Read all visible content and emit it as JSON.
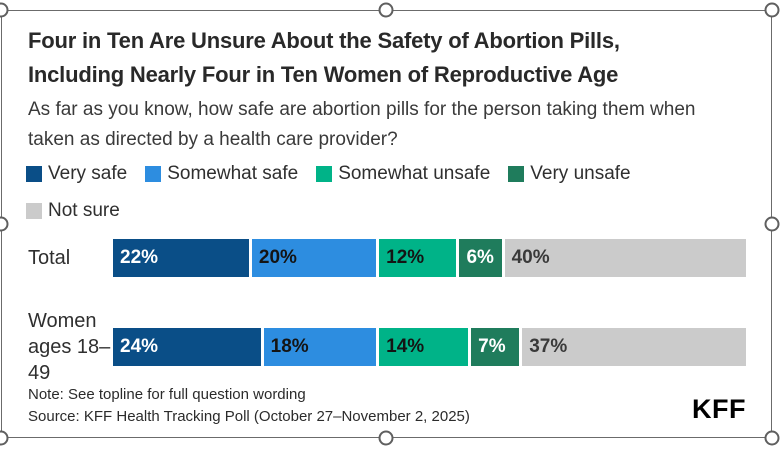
{
  "selection": {
    "border_color": "#6b6b6b",
    "handle_color": "#5f5f5f"
  },
  "card": {
    "title_line1": "Four in Ten Are Unsure About the Safety of Abortion Pills,",
    "title_line2": "Including Nearly Four in Ten Women of Reproductive Age",
    "subtitle": "As far as you know, how safe are abortion pills for the person taking them when taken as directed by a health care provider?",
    "note": "Note: See topline for full question wording",
    "source": "Source: KFF Health Tracking Poll (October 27–November 2, 2025)",
    "logo": "KFF"
  },
  "chart_data": {
    "type": "bar",
    "stacked": true,
    "orientation": "horizontal",
    "title": "Four in Ten Are Unsure About the Safety of Abortion Pills, Including Nearly Four in Ten Women of Reproductive Age",
    "subtitle": "As far as you know, how safe are abortion pills for the person taking them when taken as directed by a health care provider?",
    "categories": [
      "Total",
      "Women ages 18–49"
    ],
    "series": [
      {
        "name": "Very safe",
        "color": "#0a4e87",
        "label_color": "#ffffff",
        "values": [
          22,
          24
        ]
      },
      {
        "name": "Somewhat safe",
        "color": "#2d8de0",
        "label_color": "#141414",
        "values": [
          20,
          18
        ]
      },
      {
        "name": "Somewhat unsafe",
        "color": "#00b388",
        "label_color": "#141414",
        "values": [
          12,
          14
        ]
      },
      {
        "name": "Very unsafe",
        "color": "#1f7c5c",
        "label_color": "#ffffff",
        "values": [
          6,
          7
        ]
      },
      {
        "name": "Not sure",
        "color": "#cbcbcb",
        "label_color": "#3a3a3a",
        "values": [
          40,
          37
        ]
      }
    ],
    "value_suffix": "%",
    "xlim": [
      0,
      100
    ],
    "grid": false,
    "legend_position": "top",
    "legend_rows": [
      [
        "Very safe",
        "Somewhat safe",
        "Somewhat unsafe",
        "Very unsafe"
      ],
      [
        "Not sure"
      ]
    ]
  }
}
